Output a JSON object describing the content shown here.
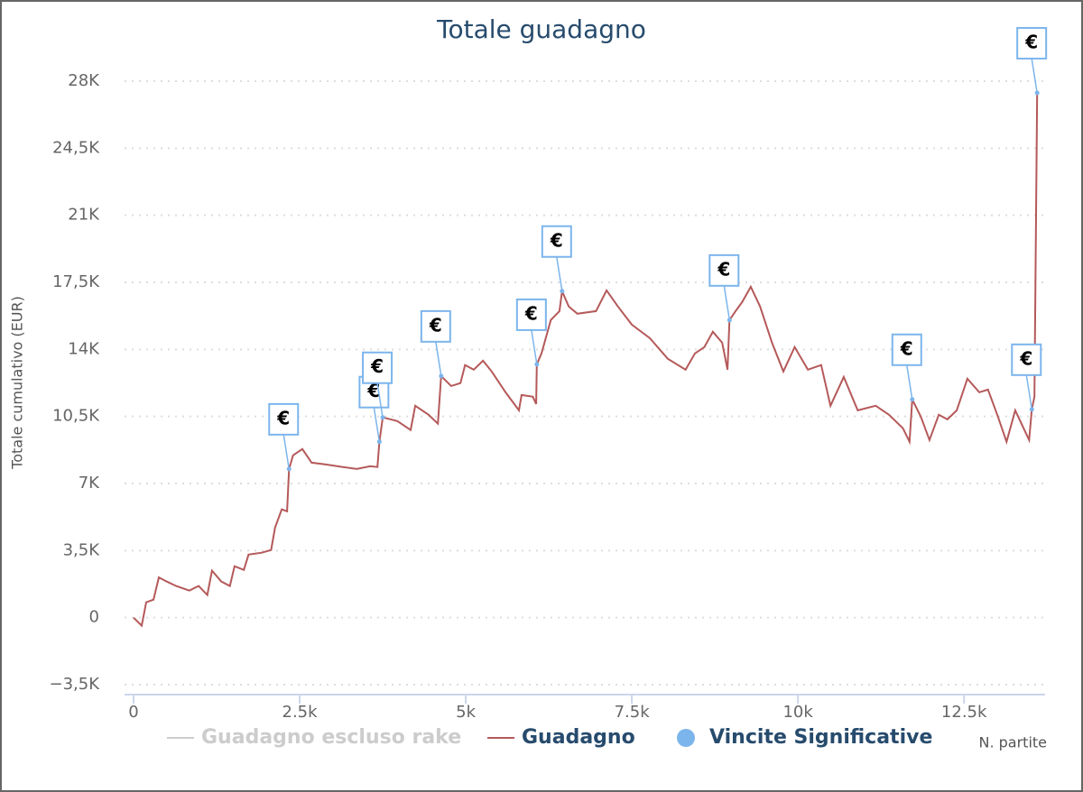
{
  "chart_data": {
    "type": "line",
    "title": "Totale guadagno",
    "y_label": "Totale cumulativo (EUR)",
    "x_label": "N. partite",
    "xlim": [
      0,
      13720
    ],
    "ylim": [
      -3500,
      28000
    ],
    "xticks": [
      {
        "value": 0,
        "label": "0"
      },
      {
        "value": 2500,
        "label": "2.5k"
      },
      {
        "value": 5000,
        "label": "5k"
      },
      {
        "value": 7500,
        "label": "7.5k"
      },
      {
        "value": 10000,
        "label": "10k"
      },
      {
        "value": 12500,
        "label": "12.5k"
      }
    ],
    "yticks": [
      {
        "value": -3500,
        "label": "−3,5K"
      },
      {
        "value": 0,
        "label": "0"
      },
      {
        "value": 3500,
        "label": "3,5K"
      },
      {
        "value": 7000,
        "label": "7K"
      },
      {
        "value": 10500,
        "label": "10,5K"
      },
      {
        "value": 14000,
        "label": "14K"
      },
      {
        "value": 17500,
        "label": "17,5K"
      },
      {
        "value": 21000,
        "label": "21K"
      },
      {
        "value": 24500,
        "label": "24,5K"
      },
      {
        "value": 28000,
        "label": "28K"
      }
    ],
    "grid": true,
    "series": [
      {
        "name": "Guadagno escluso rake",
        "color": "#cccccc",
        "visible": false
      },
      {
        "name": "Guadagno",
        "color": "#b5595a",
        "x": [
          0,
          122,
          190,
          300,
          380,
          500,
          640,
          840,
          980,
          1110,
          1180,
          1320,
          1450,
          1520,
          1660,
          1730,
          1930,
          2070,
          2130,
          2230,
          2310,
          2340,
          2400,
          2540,
          2680,
          2880,
          3150,
          3360,
          3560,
          3670,
          3700,
          3750,
          3970,
          4170,
          4240,
          4440,
          4580,
          4630,
          4780,
          4920,
          4990,
          5120,
          5260,
          5390,
          5600,
          5800,
          5840,
          6010,
          6060,
          6070,
          6140,
          6280,
          6410,
          6450,
          6550,
          6680,
          6960,
          7120,
          7290,
          7500,
          7770,
          8040,
          8310,
          8450,
          8590,
          8720,
          8860,
          8940,
          8970,
          9060,
          9160,
          9290,
          9430,
          9610,
          9780,
          9950,
          10150,
          10350,
          10490,
          10690,
          10900,
          11170,
          11370,
          11580,
          11680,
          11720,
          11850,
          11980,
          12120,
          12250,
          12390,
          12550,
          12730,
          12860,
          13000,
          13140,
          13270,
          13480,
          13520,
          13560,
          13600
        ],
        "values": [
          0,
          -420,
          800,
          940,
          2100,
          1880,
          1650,
          1410,
          1650,
          1180,
          2450,
          1880,
          1650,
          2680,
          2490,
          3290,
          3390,
          3530,
          4700,
          5650,
          5550,
          7760,
          8470,
          8800,
          8090,
          8000,
          7860,
          7760,
          7900,
          7860,
          9180,
          10450,
          10260,
          9790,
          11060,
          10590,
          10120,
          12610,
          12090,
          12240,
          13180,
          12940,
          13410,
          12850,
          11760,
          10820,
          11620,
          11530,
          11150,
          13220,
          13790,
          15530,
          16000,
          17040,
          16240,
          15860,
          16000,
          17080,
          16240,
          15290,
          14590,
          13510,
          12940,
          13790,
          14120,
          14920,
          14350,
          12940,
          15530,
          16000,
          16470,
          17270,
          16240,
          14350,
          12850,
          14120,
          12940,
          13180,
          11060,
          12560,
          10820,
          11060,
          10590,
          9880,
          9180,
          11390,
          10490,
          9270,
          10590,
          10350,
          10820,
          12470,
          11760,
          11900,
          10590,
          9180,
          10820,
          9270,
          10870,
          11530,
          27390
        ]
      },
      {
        "name": "Vincite Significative",
        "color": "#7cb5ec",
        "type": "scatter",
        "marker_label": "€",
        "x": [
          2340,
          3700,
          3750,
          4630,
          6070,
          6450,
          8970,
          11720,
          13520,
          13600
        ],
        "values": [
          7760,
          9180,
          10450,
          12610,
          13220,
          17040,
          15530,
          11390,
          10870,
          27390
        ]
      }
    ]
  }
}
